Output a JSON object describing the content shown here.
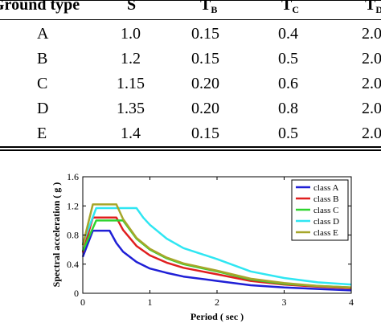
{
  "table": {
    "headers": {
      "ground_type": "Ground type",
      "s": "S",
      "tb": {
        "base": "T",
        "sub": "B"
      },
      "tc": {
        "base": "T",
        "sub": "C"
      },
      "td": {
        "base": "T",
        "sub": "D"
      }
    },
    "rows": [
      {
        "ground": "A",
        "s": "1.0",
        "tb": "0.15",
        "tc": "0.4",
        "td": "2.0"
      },
      {
        "ground": "B",
        "s": "1.2",
        "tb": "0.15",
        "tc": "0.5",
        "td": "2.0"
      },
      {
        "ground": "C",
        "s": "1.15",
        "tb": "0.20",
        "tc": "0.6",
        "td": "2.0"
      },
      {
        "ground": "D",
        "s": "1.35",
        "tb": "0.20",
        "tc": "0.8",
        "td": "2.0"
      },
      {
        "ground": "E",
        "s": "1.4",
        "tb": "0.15",
        "tc": "0.5",
        "td": "2.0"
      }
    ]
  },
  "chart_data": {
    "type": "line",
    "title": "",
    "xlabel": "Period ( sec )",
    "ylabel": "Spectral acceleration ( g )",
    "xlim": [
      0,
      4
    ],
    "ylim": [
      0,
      1.6
    ],
    "xticks": [
      "0",
      "1",
      "2",
      "3",
      "4"
    ],
    "yticks": [
      "0",
      "0.4",
      "0.8",
      "1.2",
      "1.6"
    ],
    "legend_position": "top-right",
    "grid": false,
    "series": [
      {
        "name": "class A",
        "color": "#1f1fd6",
        "points": [
          [
            0,
            0.5
          ],
          [
            0.15,
            0.86
          ],
          [
            0.4,
            0.86
          ],
          [
            0.5,
            0.69
          ],
          [
            0.6,
            0.57
          ],
          [
            0.8,
            0.43
          ],
          [
            1.0,
            0.34
          ],
          [
            1.25,
            0.28
          ],
          [
            1.5,
            0.23
          ],
          [
            2.0,
            0.17
          ],
          [
            2.5,
            0.11
          ],
          [
            3.0,
            0.08
          ],
          [
            3.5,
            0.06
          ],
          [
            4.0,
            0.04
          ]
        ]
      },
      {
        "name": "class B",
        "color": "#e01f1f",
        "points": [
          [
            0,
            0.56
          ],
          [
            0.15,
            1.04
          ],
          [
            0.5,
            1.04
          ],
          [
            0.6,
            0.87
          ],
          [
            0.8,
            0.65
          ],
          [
            1.0,
            0.52
          ],
          [
            1.25,
            0.42
          ],
          [
            1.5,
            0.35
          ],
          [
            2.0,
            0.26
          ],
          [
            2.5,
            0.17
          ],
          [
            3.0,
            0.12
          ],
          [
            3.5,
            0.09
          ],
          [
            4.0,
            0.07
          ]
        ]
      },
      {
        "name": "class C",
        "color": "#2fd42f",
        "points": [
          [
            0,
            0.58
          ],
          [
            0.2,
            1.0
          ],
          [
            0.6,
            1.0
          ],
          [
            0.8,
            0.75
          ],
          [
            1.0,
            0.6
          ],
          [
            1.25,
            0.48
          ],
          [
            1.5,
            0.4
          ],
          [
            2.0,
            0.3
          ],
          [
            2.5,
            0.19
          ],
          [
            3.0,
            0.13
          ],
          [
            3.5,
            0.1
          ],
          [
            4.0,
            0.08
          ]
        ]
      },
      {
        "name": "class D",
        "color": "#2fe6f2",
        "points": [
          [
            0,
            0.68
          ],
          [
            0.2,
            1.17
          ],
          [
            0.8,
            1.17
          ],
          [
            0.9,
            1.04
          ],
          [
            1.0,
            0.94
          ],
          [
            1.25,
            0.75
          ],
          [
            1.5,
            0.62
          ],
          [
            2.0,
            0.47
          ],
          [
            2.5,
            0.3
          ],
          [
            3.0,
            0.21
          ],
          [
            3.5,
            0.15
          ],
          [
            4.0,
            0.12
          ]
        ]
      },
      {
        "name": "class E",
        "color": "#a6a62a",
        "points": [
          [
            0,
            0.66
          ],
          [
            0.15,
            1.22
          ],
          [
            0.5,
            1.22
          ],
          [
            0.6,
            1.02
          ],
          [
            0.8,
            0.76
          ],
          [
            1.0,
            0.61
          ],
          [
            1.25,
            0.49
          ],
          [
            1.5,
            0.41
          ],
          [
            2.0,
            0.31
          ],
          [
            2.5,
            0.2
          ],
          [
            3.0,
            0.14
          ],
          [
            3.5,
            0.1
          ],
          [
            4.0,
            0.08
          ]
        ]
      }
    ]
  }
}
